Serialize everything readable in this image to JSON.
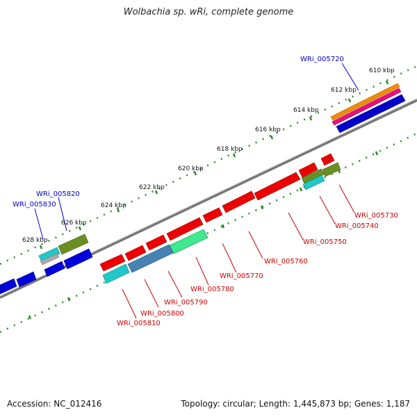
{
  "title": "Wolbachia sp. wRi, complete genome",
  "footer": {
    "accession": "Accession: NC_012416",
    "summary": "Topology: circular; Length: 1,445,873 bp; Genes: 1,187"
  },
  "ticks": [
    "610 kbp",
    "612 kbp",
    "614 kbp",
    "616 kbp",
    "618 kbp",
    "620 kbp",
    "622 kbp",
    "624 kbp",
    "626 kbp",
    "628 kbp"
  ],
  "labels": {
    "blue": [
      "WRi_005720",
      "WRi_005820",
      "WRi_005830"
    ],
    "red": [
      "WRi_005730",
      "WRi_005740",
      "WRi_005750",
      "WRi_005760",
      "WRi_005770",
      "WRi_005780",
      "WRi_005790",
      "WRi_005800",
      "WRi_005810"
    ]
  },
  "colors": {
    "red_label": "#cc0000",
    "blue_label": "#0000cc",
    "backbone": "#888888",
    "dots": "#2a8a2a"
  }
}
